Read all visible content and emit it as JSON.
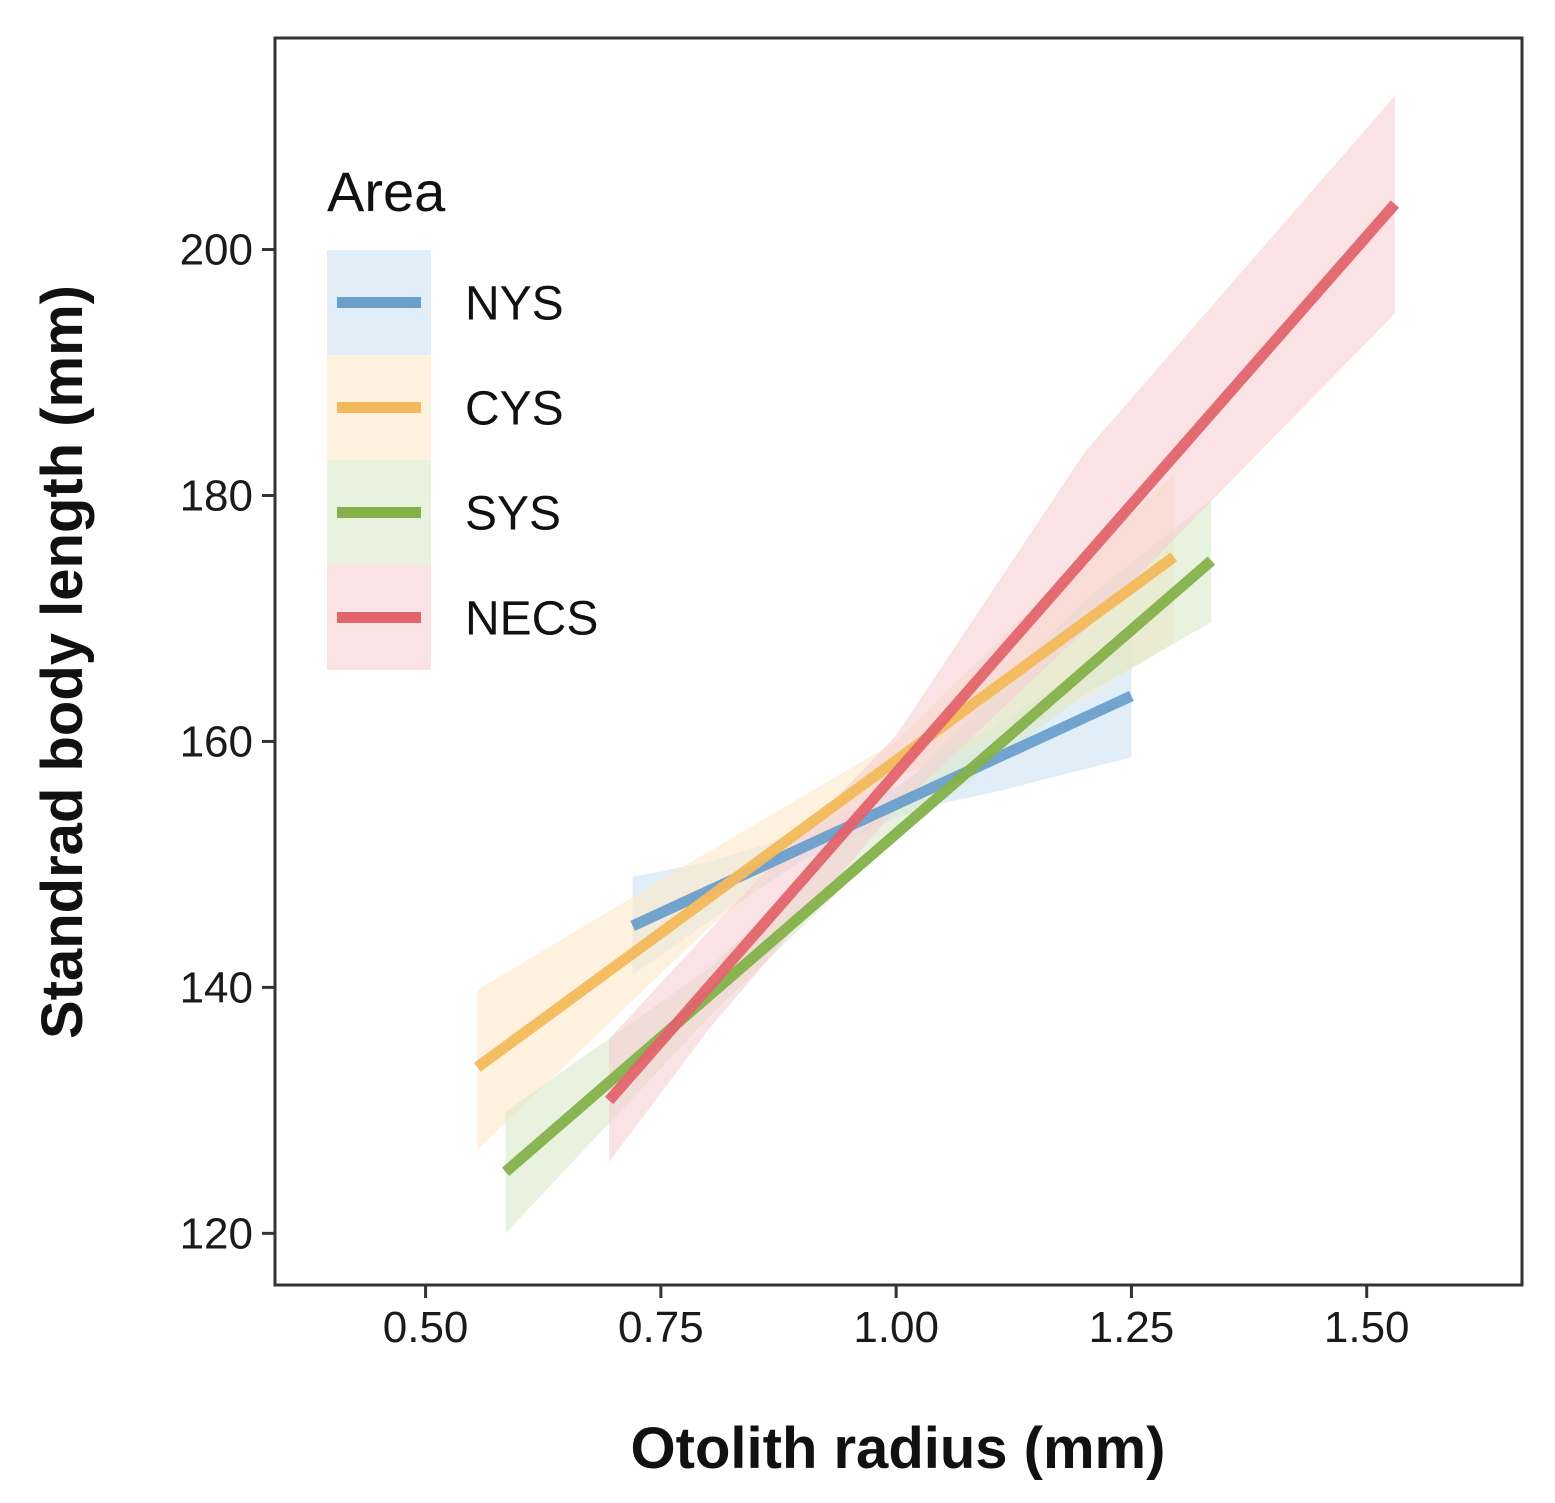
{
  "chart_data": {
    "type": "line",
    "title": "",
    "xlabel": "Otolith radius (mm)",
    "ylabel": "Standrad body length (mm)",
    "xlim": [
      0.34,
      1.665
    ],
    "ylim": [
      115.8,
      217.2
    ],
    "x_ticks": [
      0.5,
      0.75,
      1.0,
      1.25,
      1.5
    ],
    "x_tick_labels": [
      "0.50",
      "0.75",
      "1.00",
      "1.25",
      "1.50"
    ],
    "y_ticks": [
      120,
      140,
      160,
      180,
      200
    ],
    "y_tick_labels": [
      "120",
      "140",
      "160",
      "180",
      "200"
    ],
    "grid": false,
    "legend": {
      "title": "Area",
      "position": "top-left"
    },
    "series": [
      {
        "name": "NYS",
        "color": "#6a9fcc",
        "band_color": "#cfe3f1",
        "x": [
          0.72,
          1.25
        ],
        "y": [
          145.0,
          163.7
        ],
        "band": {
          "x": [
            0.72,
            0.8,
            0.9,
            1.0,
            1.05,
            1.1,
            1.25
          ],
          "lower": [
            141.0,
            145.3,
            150.3,
            153.8,
            155.0,
            155.8,
            158.7
          ],
          "upper": [
            149.0,
            150.2,
            152.5,
            156.3,
            159.0,
            161.0,
            168.6
          ]
        }
      },
      {
        "name": "CYS",
        "color": "#f3b95b",
        "band_color": "#fde8c6",
        "x": [
          0.555,
          1.295
        ],
        "y": [
          133.5,
          175.0
        ],
        "band": {
          "x": [
            0.555,
            0.8,
            1.0,
            1.2,
            1.295
          ],
          "lower": [
            126.8,
            144.8,
            157.0,
            163.5,
            168.0
          ],
          "upper": [
            139.8,
            151.0,
            160.0,
            175.0,
            181.7
          ]
        }
      },
      {
        "name": "SYS",
        "color": "#84b14a",
        "band_color": "#dbeac9",
        "x": [
          0.585,
          1.335
        ],
        "y": [
          125.0,
          174.7
        ],
        "band": {
          "x": [
            0.585,
            0.8,
            1.0,
            1.2,
            1.335
          ],
          "lower": [
            120.0,
            137.5,
            152.3,
            163.8,
            169.7
          ],
          "upper": [
            129.9,
            141.5,
            155.8,
            171.5,
            179.7
          ]
        }
      },
      {
        "name": "NECS",
        "color": "#e2646b",
        "band_color": "#f6cfd3",
        "x": [
          0.695,
          1.53
        ],
        "y": [
          130.8,
          203.7
        ],
        "band": {
          "x": [
            0.695,
            0.8,
            1.0,
            1.2,
            1.53
          ],
          "lower": [
            125.8,
            136.5,
            154.5,
            169.0,
            194.8
          ],
          "upper": [
            135.8,
            144.5,
            160.5,
            183.5,
            212.5
          ]
        }
      }
    ]
  }
}
